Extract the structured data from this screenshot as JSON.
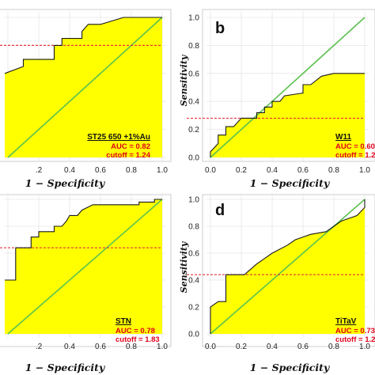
{
  "chart_data": [
    {
      "panel": "a",
      "type": "line",
      "title": "",
      "panel_label": "",
      "xlabel": "1 − Specificity",
      "ylabel": "",
      "x_ticks": [
        ".2",
        "0.4",
        "0.6",
        "0.8",
        "1.0"
      ],
      "y_ticks": [],
      "xlim": [
        0.0,
        1.0
      ],
      "ylim": [
        0.0,
        1.0
      ],
      "roc": [
        [
          -0.02,
          0.6
        ],
        [
          0.1,
          0.65
        ],
        [
          0.1,
          0.7
        ],
        [
          0.3,
          0.7
        ],
        [
          0.3,
          0.8
        ],
        [
          0.35,
          0.8
        ],
        [
          0.35,
          0.85
        ],
        [
          0.48,
          0.85
        ],
        [
          0.48,
          0.9
        ],
        [
          0.52,
          0.95
        ],
        [
          0.6,
          0.95
        ],
        [
          0.75,
          1.0
        ],
        [
          1.0,
          1.0
        ]
      ],
      "cutoff_line_y": 0.8,
      "annotation": {
        "name": "ST25 650 +1%Au",
        "auc": "AUC = 0.82",
        "cutoff": "cutoff = 1.24"
      },
      "colors": {
        "fill": "#ffff00",
        "diagonal": "#5cc14f",
        "cutoff_line": "#e8323c",
        "roc": "#1a1a1a"
      }
    },
    {
      "panel": "b",
      "type": "line",
      "title": "",
      "panel_label": "b",
      "xlabel": "1 − Specificity",
      "ylabel": "Sensitivity",
      "x_ticks": [
        "0.0",
        "0.2",
        "0.4",
        "0.6",
        "0.8",
        "1.0"
      ],
      "y_ticks": [
        "0.0",
        "0.2",
        "0.4",
        "0.6",
        "0.8",
        "1.0"
      ],
      "xlim": [
        0.0,
        1.0
      ],
      "ylim": [
        0.0,
        1.0
      ],
      "roc": [
        [
          0.0,
          0.0
        ],
        [
          0.0,
          0.04
        ],
        [
          0.05,
          0.1
        ],
        [
          0.05,
          0.16
        ],
        [
          0.1,
          0.16
        ],
        [
          0.1,
          0.22
        ],
        [
          0.15,
          0.22
        ],
        [
          0.2,
          0.28
        ],
        [
          0.3,
          0.28
        ],
        [
          0.3,
          0.32
        ],
        [
          0.35,
          0.32
        ],
        [
          0.35,
          0.36
        ],
        [
          0.4,
          0.36
        ],
        [
          0.4,
          0.4
        ],
        [
          0.45,
          0.4
        ],
        [
          0.48,
          0.44
        ],
        [
          0.6,
          0.46
        ],
        [
          0.6,
          0.52
        ],
        [
          0.65,
          0.52
        ],
        [
          0.72,
          0.58
        ],
        [
          0.8,
          0.6
        ],
        [
          1.0,
          0.6
        ]
      ],
      "cutoff_line_y": 0.28,
      "annotation": {
        "name": "W11",
        "auc": "AUC = 0.60",
        "cutoff": "cutoff = 1.2"
      },
      "colors": {
        "fill": "#ffff00",
        "diagonal": "#5cc14f",
        "cutoff_line": "#e8323c",
        "roc": "#1a1a1a"
      }
    },
    {
      "panel": "c",
      "type": "line",
      "title": "",
      "panel_label": "",
      "xlabel": "1 − Specificity",
      "ylabel": "",
      "x_ticks": [
        ".2",
        "0.4",
        "0.6",
        "0.8",
        "1.0"
      ],
      "y_ticks": [],
      "xlim": [
        0.0,
        1.0
      ],
      "ylim": [
        0.0,
        1.0
      ],
      "roc": [
        [
          -0.02,
          0.4
        ],
        [
          0.05,
          0.4
        ],
        [
          0.05,
          0.64
        ],
        [
          0.15,
          0.64
        ],
        [
          0.15,
          0.72
        ],
        [
          0.2,
          0.72
        ],
        [
          0.2,
          0.76
        ],
        [
          0.3,
          0.76
        ],
        [
          0.3,
          0.8
        ],
        [
          0.35,
          0.8
        ],
        [
          0.38,
          0.84
        ],
        [
          0.4,
          0.88
        ],
        [
          0.45,
          0.88
        ],
        [
          0.48,
          0.92
        ],
        [
          0.55,
          0.96
        ],
        [
          0.85,
          0.96
        ],
        [
          0.85,
          0.98
        ],
        [
          0.95,
          0.98
        ],
        [
          0.95,
          1.0
        ],
        [
          1.0,
          1.0
        ]
      ],
      "cutoff_line_y": 0.64,
      "annotation": {
        "name": "STN",
        "auc": "AUC = 0.78",
        "cutoff": "cutoff = 1.83"
      },
      "colors": {
        "fill": "#ffff00",
        "diagonal": "#5cc14f",
        "cutoff_line": "#e8323c",
        "roc": "#1a1a1a"
      }
    },
    {
      "panel": "d",
      "type": "line",
      "title": "",
      "panel_label": "d",
      "xlabel": "1 − Specificity",
      "ylabel": "Sensitivity",
      "x_ticks": [
        "0.0",
        "0.2",
        "0.4",
        "0.6",
        "0.8",
        "1.0"
      ],
      "y_ticks": [
        "0.0",
        "0.2",
        "0.4",
        "0.6",
        "0.8",
        "1.0"
      ],
      "xlim": [
        0.0,
        1.0
      ],
      "ylim": [
        0.0,
        1.0
      ],
      "roc": [
        [
          0.0,
          0.0
        ],
        [
          0.0,
          0.2
        ],
        [
          0.05,
          0.24
        ],
        [
          0.1,
          0.24
        ],
        [
          0.1,
          0.44
        ],
        [
          0.22,
          0.44
        ],
        [
          0.26,
          0.48
        ],
        [
          0.3,
          0.52
        ],
        [
          0.35,
          0.56
        ],
        [
          0.4,
          0.6
        ],
        [
          0.5,
          0.66
        ],
        [
          0.55,
          0.7
        ],
        [
          0.65,
          0.74
        ],
        [
          0.75,
          0.76
        ],
        [
          0.8,
          0.8
        ],
        [
          0.85,
          0.84
        ],
        [
          0.95,
          0.88
        ],
        [
          1.0,
          0.94
        ],
        [
          1.0,
          1.0
        ]
      ],
      "cutoff_line_y": 0.44,
      "annotation": {
        "name": "TiTaV",
        "auc": "AUC = 0.73",
        "cutoff": "cutoff = 1.2"
      },
      "colors": {
        "fill": "#ffff00",
        "diagonal": "#5cc14f",
        "cutoff_line": "#e8323c",
        "roc": "#1a1a1a"
      }
    }
  ]
}
